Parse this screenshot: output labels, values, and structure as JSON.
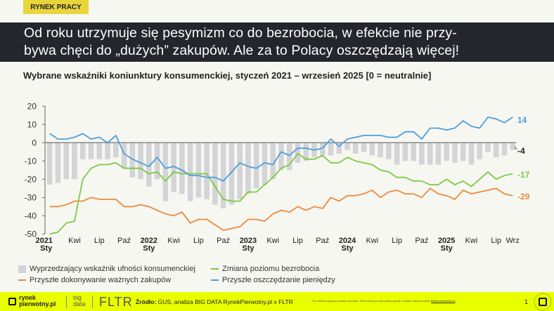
{
  "header": {
    "tag": "RYNEK PRACY",
    "title_line1": "Od roku utrzymuje się pesymizm co do bezrobocia, w efekcie nie przy-",
    "title_line2": "bywa chęci do „dużych” zakupów. Ale za to Polacy oszczędzają więcej!"
  },
  "chart_data": {
    "type": "bar+line",
    "title": "Wybrane wskaźniki koniunktury konsumenckiej, styczeń 2021 – wrzesień 2025 [0 = neutralnie]",
    "ylim": [
      -50,
      20
    ],
    "yticks": [
      "20",
      "10",
      "0",
      "-10",
      "-20",
      "-30",
      "-40",
      "-50"
    ],
    "xtick_labels": [
      {
        "top": "2021",
        "bottom": "Sty",
        "bold": true
      },
      {
        "top": "Kwi"
      },
      {
        "top": "Lip"
      },
      {
        "top": "Paź"
      },
      {
        "top": "2022",
        "bottom": "Sty",
        "bold": true
      },
      {
        "top": "Kwi"
      },
      {
        "top": "Lip"
      },
      {
        "top": "Paź"
      },
      {
        "top": "2023",
        "bottom": "Sty",
        "bold": true
      },
      {
        "top": "Kwi"
      },
      {
        "top": "Lip"
      },
      {
        "top": "Paź"
      },
      {
        "top": "2024",
        "bottom": "Sty",
        "bold": true
      },
      {
        "top": "Kwi"
      },
      {
        "top": "Lip"
      },
      {
        "top": "Paź"
      },
      {
        "top": "2025",
        "bottom": "Sty",
        "bold": true
      },
      {
        "top": "Kwi"
      },
      {
        "top": "Lip"
      },
      {
        "top": "Wrz"
      }
    ],
    "x_start": "2021-01",
    "x_end": "2025-09",
    "grid": false,
    "legend_position": "bottom",
    "series": [
      {
        "name": "Wyprzedzający wskaźnik ufności konsumenckiej",
        "type": "bar",
        "color": "#d4d4d8",
        "end_label": "-4",
        "end_label_color": "#222222",
        "values": [
          -23,
          -22,
          -20,
          -20,
          -9,
          -9,
          -9,
          -9,
          -8,
          -14,
          -19,
          -20,
          -24,
          -20,
          -32,
          -27,
          -28,
          -32,
          -30,
          -31,
          -34,
          -36,
          -34,
          -31,
          -28,
          -25,
          -23,
          -20,
          -15,
          -15,
          -11,
          -10,
          -8,
          -7,
          -7,
          -6,
          -4,
          -6,
          -5,
          -7,
          -8,
          -9,
          -12,
          -10,
          -10,
          -12,
          -12,
          -12,
          -10,
          -11,
          -10,
          -12,
          -9,
          -5,
          -8,
          -7,
          -4
        ]
      },
      {
        "name": "Zmiana poziomu bezrobocia",
        "type": "line",
        "color": "#7cc943",
        "end_label": "-17",
        "values": [
          -50,
          -49,
          -44,
          -43,
          -20,
          -14,
          -12,
          -12,
          -11,
          -14,
          -14,
          -14,
          -17,
          -16,
          -21,
          -16,
          -17,
          -17,
          -17,
          -17,
          -24,
          -31,
          -32,
          -32,
          -27,
          -27,
          -23,
          -19,
          -14,
          -12,
          -6,
          -9,
          -9,
          -7,
          -11,
          -11,
          -8,
          -10,
          -11,
          -12,
          -15,
          -16,
          -19,
          -19,
          -21,
          -21,
          -23,
          -23,
          -20,
          -23,
          -21,
          -24,
          -20,
          -16,
          -20,
          -18,
          -17
        ]
      },
      {
        "name": "Przyszłe dokonywanie ważnych zakupów",
        "type": "line",
        "color": "#ec8a3c",
        "end_label": "-29",
        "values": [
          -35,
          -35,
          -34,
          -32,
          -32,
          -30,
          -31,
          -31,
          -31,
          -35,
          -35,
          -34,
          -35,
          -37,
          -39,
          -40,
          -38,
          -44,
          -42,
          -42,
          -45,
          -48,
          -47,
          -46,
          -42,
          -42,
          -43,
          -39,
          -37,
          -38,
          -35,
          -37,
          -35,
          -36,
          -30,
          -32,
          -29,
          -29,
          -28,
          -26,
          -30,
          -27,
          -26,
          -28,
          -28,
          -30,
          -25,
          -28,
          -29,
          -31,
          -26,
          -28,
          -27,
          -26,
          -25,
          -28,
          -29
        ]
      },
      {
        "name": "Przyszłe oszczędzanie pieniędzy",
        "type": "line",
        "color": "#4a9fdc",
        "end_label": "14",
        "values": [
          5,
          2,
          2,
          3,
          5,
          2,
          3,
          0,
          4,
          -6,
          -9,
          -11,
          -13,
          -8,
          -14,
          -13,
          -15,
          -18,
          -18,
          -19,
          -19,
          -21,
          -16,
          -11,
          -13,
          -14,
          -11,
          -12,
          -5,
          -7,
          -3,
          -3,
          -4,
          -3,
          2,
          -2,
          2,
          3,
          4,
          4,
          4,
          3,
          3,
          6,
          6,
          2,
          8,
          8,
          7,
          8,
          12,
          9,
          8,
          14,
          13,
          11,
          14
        ]
      }
    ]
  },
  "legend": {
    "items": [
      "Wyprzedzający wskaźnik ufności konsumenckiej",
      "Zmiana poziomu bezrobocia",
      "Przyszłe dokonywanie ważnych zakupów",
      "Przyszłe oszczędzanie pieniędzy"
    ]
  },
  "footer": {
    "logo_line1": "rynek",
    "logo_line2": "pierwotny.pl",
    "bigdata_line1": "big",
    "bigdata_line2": "data",
    "fltr": "FLTR",
    "source_label": "Źródło:",
    "source_text": " GUS, analiza BIG DATA RynekPierwotny.pl x FLTR",
    "legal": "Ten materiał objęty jest prawem autorskim. Jeżeli chcesz go wykorzystać zgodnie z prawem napisz na adres ",
    "legal_link": "fltr@rynekpierwotny.pl",
    "page": "1"
  }
}
